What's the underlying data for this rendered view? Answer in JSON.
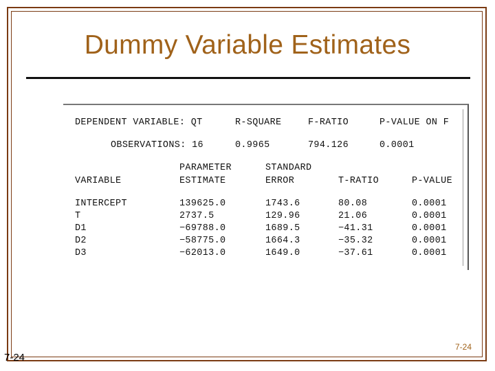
{
  "slide": {
    "title": "Dummy Variable Estimates",
    "footer_right": "7-24",
    "footer_left": "7-24"
  },
  "regression": {
    "summary_headers": [
      "DEPENDENT VARIABLE: QT",
      "R-SQUARE",
      "F-RATIO",
      "P-VALUE ON F"
    ],
    "observations_label": "OBSERVATIONS: 16",
    "r_square": "0.9965",
    "f_ratio": "794.126",
    "p_value_f": "0.0001",
    "col_headers": {
      "variable": "VARIABLE",
      "param_line1": "PARAMETER",
      "param_line2": "ESTIMATE",
      "stderr_line1": "STANDARD",
      "stderr_line2": "ERROR",
      "t_ratio": "T-RATIO",
      "p_value": "P-VALUE"
    },
    "rows": [
      {
        "variable": "INTERCEPT",
        "estimate": "139625.0",
        "std_error": "1743.6",
        "t_ratio": "80.08",
        "p_value": "0.0001"
      },
      {
        "variable": "T",
        "estimate": "2737.5",
        "std_error": "129.96",
        "t_ratio": "21.06",
        "p_value": "0.0001"
      },
      {
        "variable": "D1",
        "estimate": "−69788.0",
        "std_error": "1689.5",
        "t_ratio": "−41.31",
        "p_value": "0.0001"
      },
      {
        "variable": "D2",
        "estimate": "−58775.0",
        "std_error": "1664.3",
        "t_ratio": "−35.32",
        "p_value": "0.0001"
      },
      {
        "variable": "D3",
        "estimate": "−62013.0",
        "std_error": "1649.0",
        "t_ratio": "−37.61",
        "p_value": "0.0001"
      }
    ]
  }
}
